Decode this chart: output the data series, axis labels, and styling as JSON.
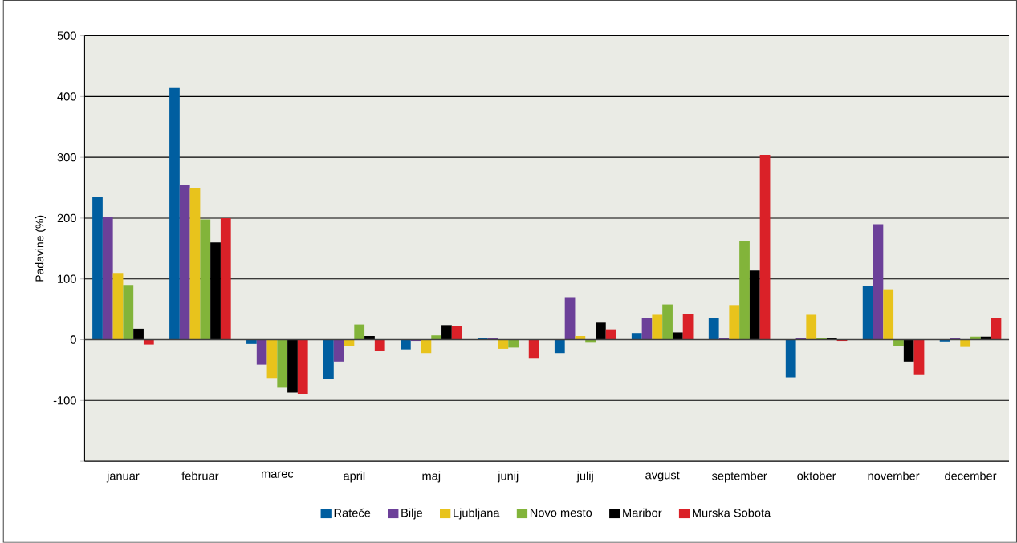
{
  "chart_data": {
    "type": "bar",
    "ylabel": "Padavine (%)",
    "categories": [
      "januar",
      "februar",
      "marec",
      "april",
      "maj",
      "junij",
      "julij",
      "avgust",
      "september",
      "oktober",
      "november",
      "december"
    ],
    "series": [
      {
        "name": "Rateče",
        "color": "#005ea0",
        "values": [
          235,
          414,
          -7,
          -65,
          -16,
          2,
          -22,
          11,
          35,
          -62,
          88,
          -3
        ]
      },
      {
        "name": "Bilje",
        "color": "#6c4099",
        "values": [
          202,
          254,
          -41,
          -36,
          -2,
          2,
          70,
          36,
          2,
          2,
          190,
          2
        ]
      },
      {
        "name": "Ljubljana",
        "color": "#e8c31c",
        "values": [
          110,
          249,
          -63,
          -10,
          -22,
          -15,
          6,
          41,
          57,
          41,
          83,
          -12
        ]
      },
      {
        "name": "Novo mesto",
        "color": "#82b43a",
        "values": [
          90,
          198,
          -79,
          25,
          7,
          -13,
          -5,
          58,
          162,
          2,
          -11,
          5
        ]
      },
      {
        "name": "Maribor",
        "color": "#000000",
        "values": [
          18,
          160,
          -87,
          6,
          24,
          0,
          28,
          12,
          114,
          2,
          -36,
          5
        ]
      },
      {
        "name": "Murska Sobota",
        "color": "#da2128",
        "values": [
          -8,
          200,
          -89,
          -18,
          22,
          -30,
          17,
          42,
          304,
          -2,
          -57,
          36
        ]
      }
    ],
    "ylim": [
      -200,
      500
    ],
    "yticks": [
      {
        "value": -200,
        "label": null
      },
      -100,
      0,
      100,
      200,
      300,
      400,
      500
    ],
    "grid": "y",
    "legend": "bottom"
  }
}
